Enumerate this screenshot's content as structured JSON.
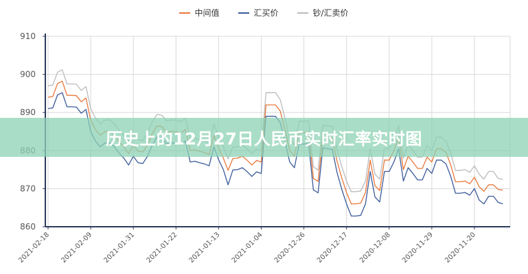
{
  "page": {
    "banner_title": "历史上的12月27日人民币实时汇率实时图"
  },
  "legend": [
    {
      "label": "中间值",
      "color": "#e8773a"
    },
    {
      "label": "汇买价",
      "color": "#3a5a9a"
    },
    {
      "label": "钞/汇卖价",
      "color": "#bbbbbb"
    }
  ],
  "chart_data": {
    "type": "line",
    "title": "",
    "xlabel": "",
    "ylabel": "",
    "ylim": [
      860,
      910
    ],
    "yticks": [
      860,
      870,
      880,
      890,
      900,
      910
    ],
    "grid": true,
    "legend_position": "top",
    "x_tick_labels": [
      "2021-02-18",
      "2021-02-09",
      "2021-01-31",
      "2021-01-22",
      "2021-01-13",
      "2021-01-04",
      "2020-12-26",
      "2020-12-17",
      "2020-12-08",
      "2020-11-29",
      "2020-11-20"
    ],
    "series": [
      {
        "name": "中间值",
        "color": "#e8773a",
        "values": [
          894.0,
          894.2,
          897.6,
          898.2,
          894.5,
          894.5,
          894.4,
          892.8,
          893.8,
          888.0,
          885.5,
          884.0,
          885.0,
          885.0,
          884.0,
          882.3,
          881.0,
          879.2,
          881.5,
          879.8,
          879.6,
          881.5,
          884.5,
          886.5,
          886.3,
          884.8,
          885.0,
          885.0,
          884.6,
          885.5,
          880.0,
          880.2,
          879.8,
          879.5,
          879.0,
          884.0,
          880.6,
          878.0,
          874.8,
          877.9,
          878.0,
          878.5,
          877.5,
          876.2,
          877.4,
          877.0,
          892.0,
          892.0,
          892.0,
          890.4,
          885.5,
          880.0,
          878.5,
          884.7,
          884.7,
          884.8,
          872.7,
          871.9,
          883.7,
          883.5,
          883.3,
          877.2,
          872.8,
          869.0,
          866.0,
          866.0,
          866.2,
          869.0,
          877.5,
          870.8,
          869.5,
          877.5,
          877.5,
          880.0,
          883.5,
          875.0,
          878.5,
          877.0,
          875.3,
          875.3,
          878.3,
          877.0,
          880.5,
          880.5,
          879.5,
          876.2,
          871.8,
          871.8,
          872.0,
          871.3,
          873.0,
          870.5,
          869.3,
          871.0,
          871.0,
          869.8,
          869.6
        ]
      },
      {
        "name": "汇买价",
        "color": "#3a5a9a",
        "values": [
          891.0,
          891.2,
          894.6,
          895.2,
          891.5,
          891.5,
          891.4,
          889.8,
          890.8,
          885.0,
          882.5,
          881.0,
          882.0,
          882.0,
          881.0,
          879.3,
          878.0,
          876.2,
          878.5,
          876.8,
          876.6,
          878.5,
          881.5,
          883.5,
          883.3,
          881.8,
          882.0,
          882.0,
          881.6,
          882.5,
          877.0,
          877.2,
          876.8,
          876.5,
          876.0,
          881.0,
          877.6,
          875.0,
          871.0,
          874.9,
          875.0,
          875.5,
          874.5,
          873.2,
          874.4,
          874.0,
          889.0,
          889.0,
          889.0,
          887.4,
          882.5,
          877.0,
          875.5,
          881.7,
          881.7,
          881.8,
          869.7,
          868.9,
          880.7,
          880.5,
          880.3,
          874.2,
          869.8,
          866.0,
          862.8,
          862.8,
          863.0,
          866.0,
          874.5,
          867.8,
          866.5,
          874.5,
          874.5,
          877.0,
          880.5,
          872.0,
          875.5,
          874.0,
          872.3,
          872.3,
          875.3,
          874.0,
          877.5,
          877.5,
          876.5,
          873.2,
          868.8,
          868.8,
          869.0,
          868.3,
          870.0,
          867.0,
          866.0,
          868.0,
          868.0,
          866.4,
          866.0
        ]
      },
      {
        "name": "钞/汇卖价",
        "color": "#bbbbbb",
        "values": [
          897.0,
          897.2,
          900.6,
          901.2,
          897.5,
          897.5,
          897.4,
          895.8,
          896.8,
          891.0,
          888.5,
          887.0,
          888.0,
          888.0,
          887.0,
          885.3,
          884.0,
          882.2,
          884.5,
          882.8,
          882.6,
          884.5,
          887.5,
          889.5,
          889.3,
          887.8,
          888.0,
          888.0,
          887.6,
          888.5,
          883.0,
          883.2,
          882.8,
          882.5,
          882.0,
          887.0,
          883.6,
          881.0,
          877.8,
          880.9,
          881.0,
          881.5,
          880.5,
          879.2,
          880.4,
          880.0,
          895.2,
          895.2,
          895.2,
          893.4,
          888.5,
          883.0,
          881.5,
          887.7,
          887.7,
          887.8,
          875.7,
          874.9,
          886.7,
          886.5,
          886.3,
          880.2,
          875.8,
          872.0,
          869.2,
          869.2,
          869.4,
          872.0,
          880.5,
          873.8,
          872.5,
          880.5,
          880.5,
          883.0,
          886.5,
          878.0,
          881.5,
          880.0,
          878.3,
          878.3,
          881.3,
          880.0,
          883.5,
          883.5,
          882.5,
          879.2,
          874.8,
          874.8,
          875.0,
          874.3,
          876.0,
          873.8,
          872.5,
          874.5,
          874.5,
          872.7,
          872.4
        ]
      }
    ]
  }
}
